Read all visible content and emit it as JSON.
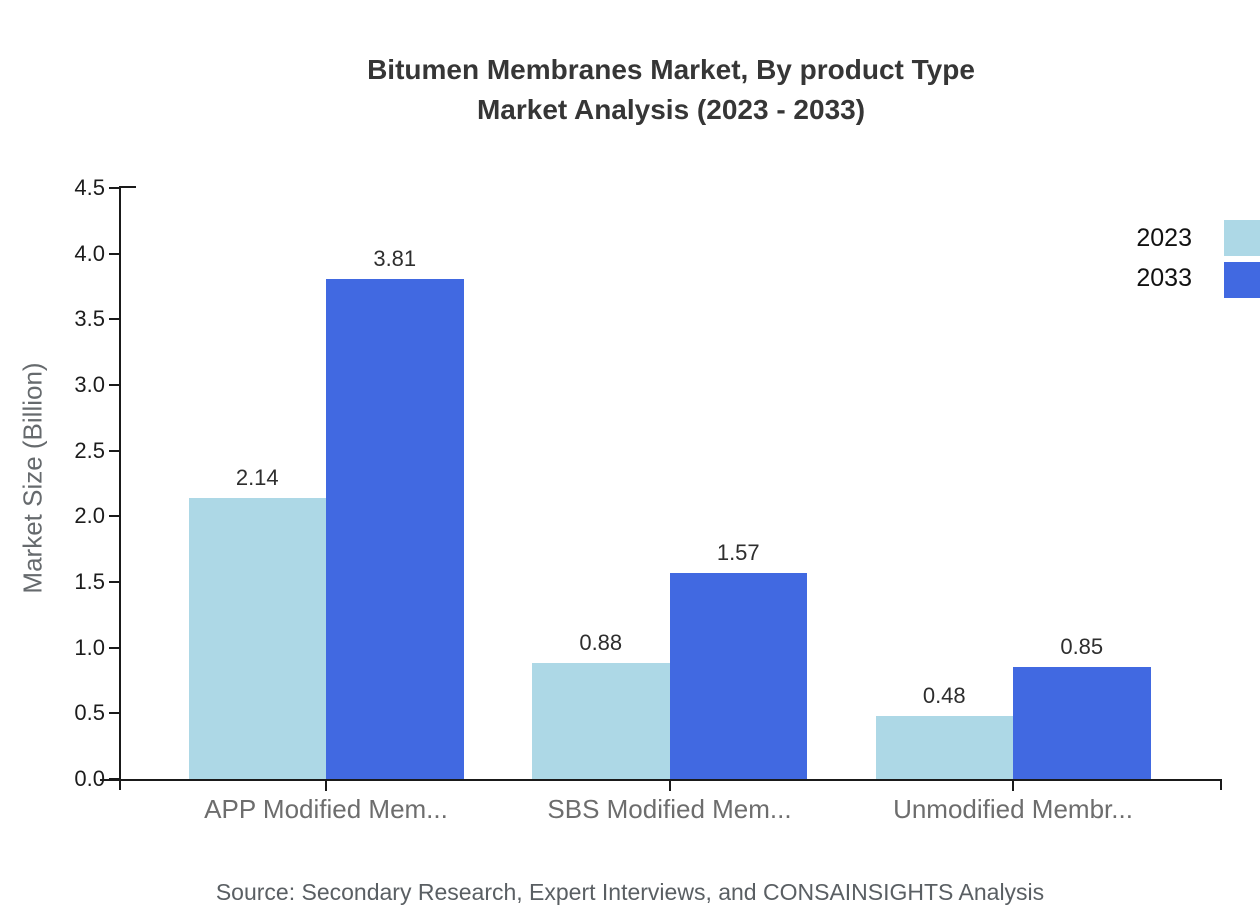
{
  "title": {
    "line1": "Bitumen Membranes Market, By product Type",
    "line2": "Market Analysis (2023 - 2033)"
  },
  "source_note": "Source: Secondary Research, Expert Interviews, and CONSAINSIGHTS Analysis",
  "chart_data": {
    "type": "bar",
    "title": "Bitumen Membranes Market, By product Type Market Analysis (2023 - 2033)",
    "categories": [
      "APP Modified Mem...",
      "SBS Modified Mem...",
      "Unmodified Membr..."
    ],
    "series": [
      {
        "name": "2023",
        "color": "#ADD8E6",
        "values": [
          2.14,
          0.88,
          0.48
        ]
      },
      {
        "name": "2033",
        "color": "#4169E1",
        "values": [
          3.81,
          1.57,
          0.85
        ]
      }
    ],
    "value_labels": [
      [
        "2.14",
        "0.88",
        "0.48"
      ],
      [
        "3.81",
        "1.57",
        "0.85"
      ]
    ],
    "xlabel": "",
    "ylabel": "Market Size (Billion)",
    "ylim": [
      0,
      4.5
    ],
    "ytick_step": 0.5,
    "ytick_labels": [
      "0.0",
      "0.5",
      "1.0",
      "1.5",
      "2.0",
      "2.5",
      "3.0",
      "3.5",
      "4.0",
      "4.5"
    ],
    "grid": false,
    "legend_position": "top-right",
    "axis_color": "#1a1a1a",
    "text_colors": {
      "title": "#363636",
      "tick_labels": "#1c1c1c",
      "category_labels": "#6d6d6d",
      "value_labels": "#2e2e2e",
      "y_axis_title": "#666a6d",
      "source": "#5a5f63"
    }
  }
}
